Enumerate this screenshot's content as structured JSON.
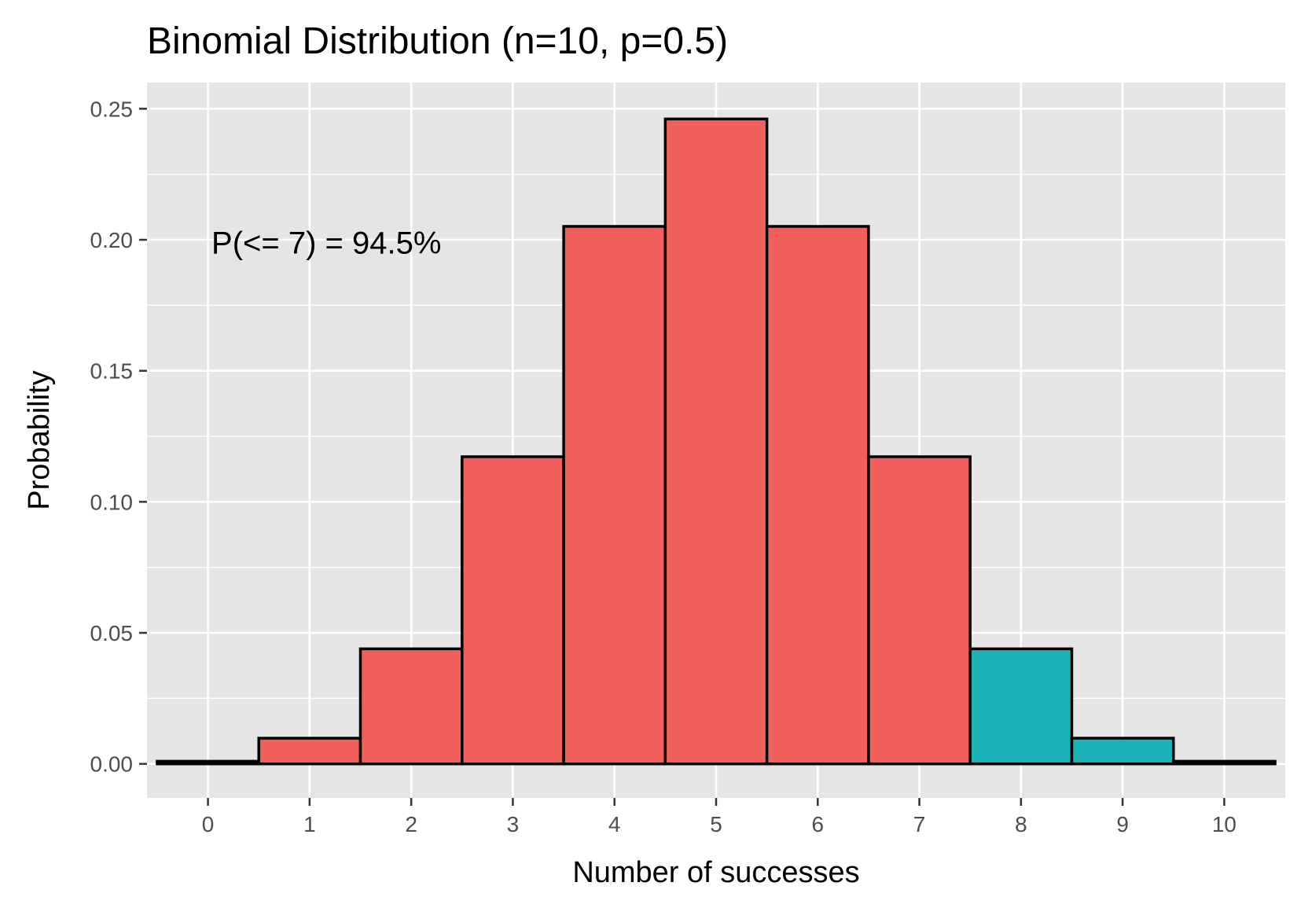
{
  "chart_data": {
    "type": "bar",
    "title": "Binomial Distribution (n=10, p=0.5)",
    "xlabel": "Number of successes",
    "ylabel": "Probability",
    "categories": [
      "0",
      "1",
      "2",
      "3",
      "4",
      "5",
      "6",
      "7",
      "8",
      "9",
      "10"
    ],
    "x": [
      0,
      1,
      2,
      3,
      4,
      5,
      6,
      7,
      8,
      9,
      10
    ],
    "values": [
      0.001,
      0.0098,
      0.0439,
      0.1172,
      0.2051,
      0.2461,
      0.2051,
      0.1172,
      0.0439,
      0.0098,
      0.001
    ],
    "highlight_threshold": 7,
    "xlim": [
      -0.6,
      10.6
    ],
    "ylim": [
      -0.013,
      0.26
    ],
    "yticks": [
      0,
      0.05,
      0.1,
      0.15,
      0.2,
      0.25
    ],
    "ytick_labels": [
      "0.00",
      "0.05",
      "0.10",
      "0.15",
      "0.20",
      "0.25"
    ],
    "annotation": {
      "text": "P(<= 7) = 94.5%",
      "x": 0.05,
      "y": 0.199
    },
    "grid": true,
    "legend": "none",
    "colors": {
      "below_or_equal": "#F2605C",
      "above": "#1AB4B8",
      "outline": "#000000",
      "panel": "#E5E5E5",
      "gridline": "#FFFFFF"
    }
  }
}
